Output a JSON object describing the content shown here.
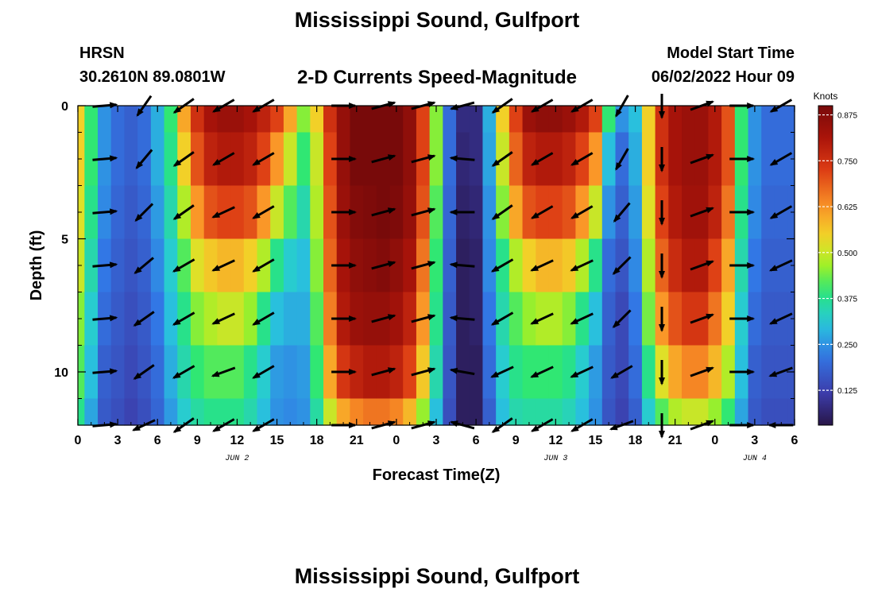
{
  "header": {
    "title": "Mississippi Sound, Gulfport",
    "station": "HRSN",
    "coords": "30.2610N  89.0801W",
    "plot_title": "2-D Currents Speed-Magnitude",
    "model_label": "Model Start Time",
    "model_time": "06/02/2022 Hour 09"
  },
  "footer": {
    "next_title": "Mississippi Sound, Gulfport"
  },
  "chart_data": {
    "type": "heatmap",
    "xlabel": "Forecast Time(Z)",
    "ylabel": "Depth (ft)",
    "x_range_hours": [
      0,
      54
    ],
    "x_ticks": [
      "0",
      "3",
      "6",
      "9",
      "12",
      "15",
      "18",
      "21",
      "0",
      "3",
      "6",
      "9",
      "12",
      "15",
      "18",
      "21",
      "0",
      "3",
      "6"
    ],
    "x_tick_hours": [
      0,
      3,
      6,
      9,
      12,
      15,
      18,
      21,
      24,
      27,
      30,
      33,
      36,
      39,
      42,
      45,
      48,
      51,
      54
    ],
    "date_labels": [
      {
        "label": "JUN 2",
        "hour": 12
      },
      {
        "label": "JUN 3",
        "hour": 36
      },
      {
        "label": "JUN 4",
        "hour": 51
      }
    ],
    "y_range": [
      0,
      12
    ],
    "y_ticks": [
      "0",
      "5",
      "10"
    ],
    "y_tick_values": [
      0,
      5,
      10
    ],
    "colorbar": {
      "label": "Knots",
      "range": [
        0.03,
        0.9
      ],
      "ticks": [
        "0.875",
        "0.750",
        "0.625",
        "0.500",
        "0.375",
        "0.250",
        "0.125"
      ],
      "tick_values": [
        0.875,
        0.75,
        0.625,
        0.5,
        0.375,
        0.25,
        0.125
      ]
    },
    "time_hours": [
      0,
      1,
      2,
      3,
      4,
      5,
      6,
      7,
      8,
      9,
      10,
      11,
      12,
      13,
      14,
      15,
      16,
      17,
      18,
      19,
      20,
      21,
      22,
      23,
      24,
      25,
      26,
      27,
      28,
      29,
      30,
      31,
      32,
      33,
      34,
      35,
      36,
      37,
      38,
      39,
      40,
      41,
      42,
      43,
      44,
      45,
      46,
      47,
      48,
      49,
      50,
      51,
      52,
      53,
      54
    ],
    "depths_ft": [
      0,
      2,
      4,
      6,
      8,
      10,
      12
    ],
    "speed_knots_by_depth": [
      [
        0.55,
        0.4,
        0.25,
        0.2,
        0.18,
        0.2,
        0.28,
        0.4,
        0.6,
        0.75,
        0.82,
        0.84,
        0.84,
        0.82,
        0.78,
        0.72,
        0.6,
        0.45,
        0.55,
        0.75,
        0.85,
        0.9,
        0.9,
        0.9,
        0.9,
        0.86,
        0.72,
        0.45,
        0.2,
        0.08,
        0.08,
        0.28,
        0.55,
        0.72,
        0.84,
        0.86,
        0.86,
        0.84,
        0.8,
        0.72,
        0.4,
        0.25,
        0.3,
        0.55,
        0.75,
        0.82,
        0.84,
        0.84,
        0.8,
        0.7,
        0.4,
        0.25,
        0.2,
        0.2,
        0.2
      ],
      [
        0.55,
        0.4,
        0.25,
        0.2,
        0.18,
        0.2,
        0.28,
        0.38,
        0.55,
        0.7,
        0.78,
        0.8,
        0.8,
        0.78,
        0.72,
        0.62,
        0.5,
        0.4,
        0.5,
        0.72,
        0.85,
        0.9,
        0.9,
        0.9,
        0.9,
        0.86,
        0.72,
        0.45,
        0.2,
        0.07,
        0.08,
        0.27,
        0.5,
        0.68,
        0.78,
        0.8,
        0.8,
        0.78,
        0.72,
        0.62,
        0.3,
        0.2,
        0.28,
        0.55,
        0.75,
        0.82,
        0.84,
        0.84,
        0.8,
        0.7,
        0.4,
        0.25,
        0.2,
        0.2,
        0.2
      ],
      [
        0.52,
        0.38,
        0.24,
        0.19,
        0.17,
        0.19,
        0.26,
        0.35,
        0.48,
        0.62,
        0.7,
        0.72,
        0.72,
        0.7,
        0.62,
        0.5,
        0.42,
        0.35,
        0.48,
        0.7,
        0.84,
        0.88,
        0.89,
        0.9,
        0.89,
        0.85,
        0.7,
        0.42,
        0.19,
        0.06,
        0.07,
        0.25,
        0.45,
        0.6,
        0.7,
        0.72,
        0.72,
        0.7,
        0.62,
        0.5,
        0.25,
        0.18,
        0.26,
        0.52,
        0.72,
        0.8,
        0.83,
        0.83,
        0.78,
        0.66,
        0.38,
        0.24,
        0.19,
        0.19,
        0.19
      ],
      [
        0.5,
        0.35,
        0.22,
        0.18,
        0.16,
        0.18,
        0.24,
        0.32,
        0.42,
        0.52,
        0.56,
        0.58,
        0.58,
        0.55,
        0.48,
        0.38,
        0.32,
        0.3,
        0.45,
        0.68,
        0.82,
        0.86,
        0.87,
        0.88,
        0.86,
        0.82,
        0.66,
        0.4,
        0.18,
        0.05,
        0.06,
        0.24,
        0.38,
        0.48,
        0.55,
        0.58,
        0.58,
        0.56,
        0.48,
        0.38,
        0.2,
        0.16,
        0.24,
        0.48,
        0.68,
        0.76,
        0.8,
        0.8,
        0.72,
        0.6,
        0.35,
        0.22,
        0.18,
        0.18,
        0.18
      ],
      [
        0.45,
        0.32,
        0.2,
        0.17,
        0.15,
        0.17,
        0.22,
        0.3,
        0.38,
        0.45,
        0.48,
        0.5,
        0.5,
        0.46,
        0.38,
        0.3,
        0.28,
        0.28,
        0.42,
        0.65,
        0.8,
        0.84,
        0.85,
        0.85,
        0.83,
        0.78,
        0.62,
        0.38,
        0.17,
        0.05,
        0.06,
        0.22,
        0.35,
        0.42,
        0.46,
        0.48,
        0.48,
        0.45,
        0.38,
        0.3,
        0.18,
        0.14,
        0.22,
        0.44,
        0.62,
        0.7,
        0.74,
        0.74,
        0.66,
        0.55,
        0.32,
        0.2,
        0.17,
        0.17,
        0.17
      ],
      [
        0.42,
        0.3,
        0.18,
        0.16,
        0.14,
        0.16,
        0.2,
        0.28,
        0.35,
        0.4,
        0.42,
        0.42,
        0.42,
        0.38,
        0.32,
        0.26,
        0.25,
        0.26,
        0.4,
        0.6,
        0.74,
        0.78,
        0.8,
        0.8,
        0.78,
        0.72,
        0.56,
        0.35,
        0.16,
        0.05,
        0.05,
        0.2,
        0.32,
        0.38,
        0.4,
        0.4,
        0.4,
        0.38,
        0.32,
        0.26,
        0.17,
        0.14,
        0.2,
        0.38,
        0.52,
        0.6,
        0.64,
        0.64,
        0.58,
        0.48,
        0.3,
        0.18,
        0.16,
        0.16,
        0.16
      ],
      [
        0.38,
        0.27,
        0.17,
        0.15,
        0.13,
        0.15,
        0.19,
        0.26,
        0.32,
        0.36,
        0.38,
        0.38,
        0.38,
        0.35,
        0.3,
        0.25,
        0.24,
        0.25,
        0.36,
        0.5,
        0.6,
        0.64,
        0.66,
        0.66,
        0.64,
        0.58,
        0.46,
        0.3,
        0.15,
        0.05,
        0.05,
        0.18,
        0.3,
        0.35,
        0.36,
        0.36,
        0.36,
        0.34,
        0.3,
        0.25,
        0.16,
        0.13,
        0.18,
        0.32,
        0.42,
        0.48,
        0.5,
        0.5,
        0.46,
        0.4,
        0.27,
        0.17,
        0.15,
        0.15,
        0.15
      ]
    ],
    "vector_depths_ft": [
      0,
      2,
      4,
      6,
      8,
      10,
      12
    ],
    "vector_times_h": [
      2,
      5,
      8,
      11,
      14,
      20,
      23,
      26,
      29,
      32,
      35,
      38,
      41,
      44,
      47,
      50,
      53
    ],
    "vector_angles_deg": [
      5,
      235,
      215,
      210,
      210,
      0,
      15,
      15,
      195,
      215,
      210,
      210,
      240,
      270,
      20,
      0,
      210
    ],
    "vector_angle_jitter_deg": [
      [
        0,
        0,
        0,
        0,
        0,
        0,
        0,
        0,
        0,
        0,
        0,
        0,
        0,
        0,
        0,
        0,
        0
      ],
      [
        0,
        -5,
        0,
        0,
        0,
        0,
        0,
        0,
        -20,
        0,
        0,
        0,
        0,
        0,
        0,
        0,
        0
      ],
      [
        0,
        -10,
        0,
        -5,
        0,
        0,
        0,
        0,
        -15,
        0,
        0,
        0,
        -10,
        0,
        0,
        0,
        0
      ],
      [
        0,
        -15,
        -5,
        -5,
        0,
        0,
        0,
        0,
        -20,
        -5,
        -5,
        -5,
        -15,
        0,
        0,
        0,
        -5
      ],
      [
        0,
        -20,
        -5,
        -5,
        0,
        0,
        0,
        0,
        -20,
        -5,
        -5,
        -5,
        -15,
        0,
        0,
        0,
        -5
      ],
      [
        0,
        -20,
        -5,
        -10,
        0,
        0,
        0,
        0,
        -25,
        -10,
        -5,
        -5,
        -30,
        0,
        0,
        0,
        -10
      ],
      [
        0,
        -30,
        0,
        0,
        0,
        0,
        0,
        0,
        -30,
        0,
        0,
        0,
        -40,
        0,
        0,
        0,
        -30
      ]
    ]
  }
}
